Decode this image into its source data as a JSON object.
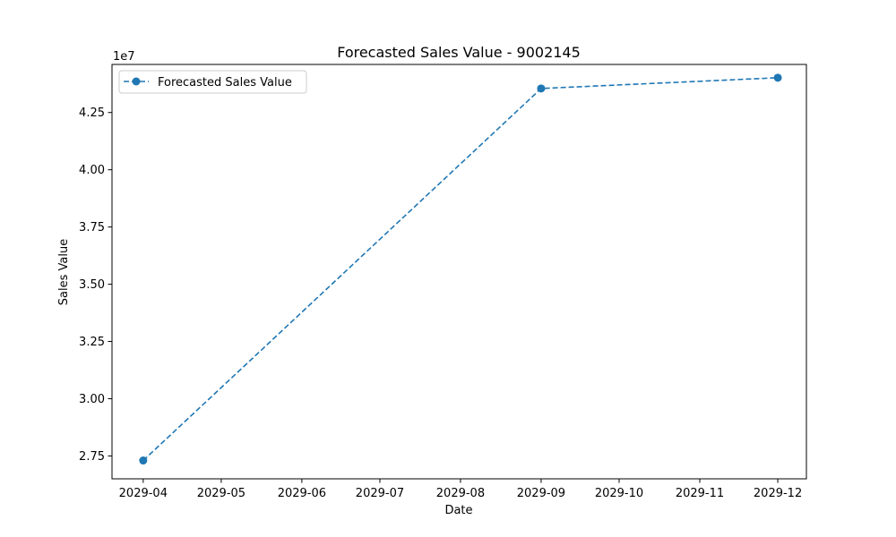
{
  "chart_data": {
    "type": "line",
    "title": "Forecasted Sales Value - 9002145",
    "xlabel": "Date",
    "ylabel": "Sales Value",
    "y_offset_label": "1e7",
    "x_ticks": [
      "2029-04",
      "2029-05",
      "2029-06",
      "2029-07",
      "2029-08",
      "2029-09",
      "2029-10",
      "2029-11",
      "2029-12"
    ],
    "y_ticks": [
      "2.75",
      "3.00",
      "3.25",
      "3.50",
      "3.75",
      "4.00",
      "4.25"
    ],
    "xlim": [
      "2029-03-20",
      "2029-12-12"
    ],
    "ylim": [
      26500000,
      44600000
    ],
    "grid": false,
    "legend_position": "upper left",
    "series": [
      {
        "name": "Forecasted Sales Value",
        "color": "#1f77b4",
        "line_style": "dashed",
        "marker": "circle",
        "x": [
          "2029-04-01",
          "2029-09-01",
          "2029-12-01"
        ],
        "y": [
          27300000,
          43550000,
          44020000
        ]
      }
    ]
  }
}
